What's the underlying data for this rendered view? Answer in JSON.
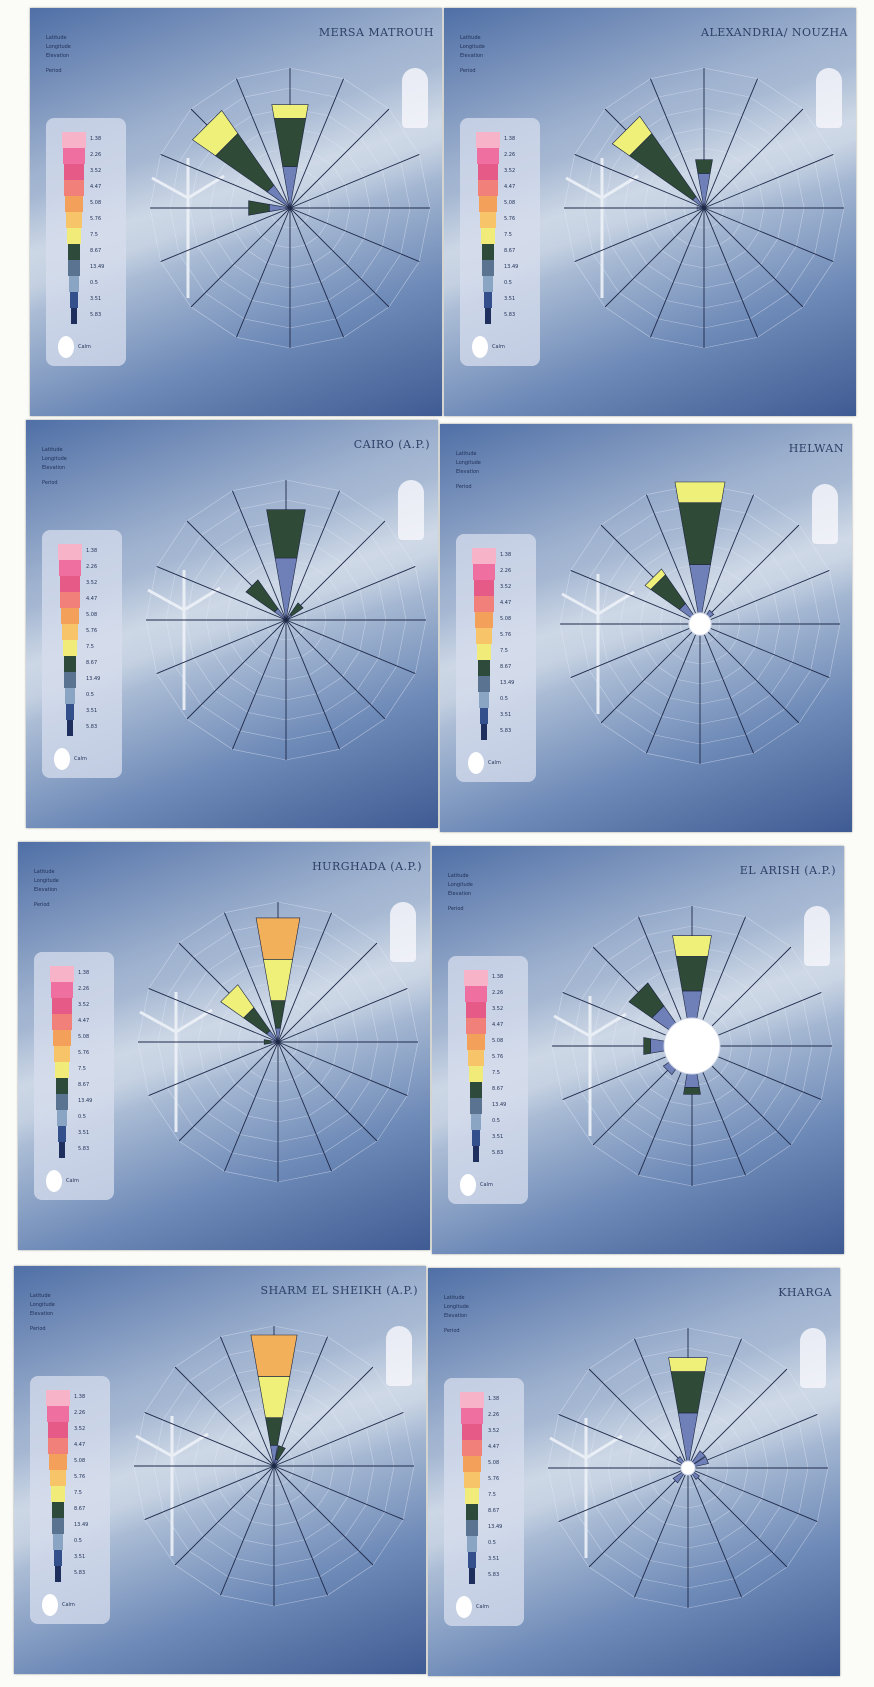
{
  "chart_data": [
    {
      "type": "wind-rose",
      "title": "MERSA MATROUH",
      "position": "top-left",
      "sectors": [
        {
          "dir": 0,
          "speed_bins": [
            0.3,
            0.35,
            0.1
          ]
        },
        {
          "dir": 315,
          "speed_bins": [
            0.2,
            0.45,
            0.2
          ]
        },
        {
          "dir": 270,
          "speed_bins": [
            0.15,
            0.15
          ]
        }
      ],
      "calm": 0
    },
    {
      "type": "wind-rose",
      "title": "ALEXANDRIA/ NOUZHA",
      "position": "top-right",
      "sectors": [
        {
          "dir": 0,
          "speed_bins": [
            0.25,
            0.1
          ]
        },
        {
          "dir": 315,
          "speed_bins": [
            0.1,
            0.55,
            0.15
          ]
        },
        {
          "dir": 270,
          "speed_bins": [
            0.05
          ]
        }
      ],
      "calm": 0
    },
    {
      "type": "wind-rose",
      "title": "CAIRO (A.P.)",
      "position": "mid1-left",
      "sectors": [
        {
          "dir": 0,
          "speed_bins": [
            0.45,
            0.35
          ]
        },
        {
          "dir": 315,
          "speed_bins": [
            0.1,
            0.25
          ]
        },
        {
          "dir": 45,
          "speed_bins": [
            0.05,
            0.1
          ]
        }
      ],
      "calm": 0
    },
    {
      "type": "wind-rose",
      "title": "HELWAN",
      "position": "mid1-right",
      "sectors": [
        {
          "dir": 0,
          "speed_bins": [
            0.35,
            0.45,
            0.15
          ]
        },
        {
          "dir": 315,
          "speed_bins": [
            0.1,
            0.25,
            0.05
          ]
        },
        {
          "dir": 45,
          "speed_bins": [
            0.04
          ]
        }
      ],
      "calm": 0.08
    },
    {
      "type": "wind-rose",
      "title": "HURGHADA (A.P.)",
      "position": "mid2-left",
      "sectors": [
        {
          "dir": 0,
          "speed_bins": [
            0.1,
            0.2,
            0.3,
            0.3
          ]
        },
        {
          "dir": 315,
          "speed_bins": [
            0.1,
            0.2,
            0.2
          ]
        },
        {
          "dir": 270,
          "speed_bins": [
            0.05,
            0.05
          ]
        }
      ],
      "calm": 0
    },
    {
      "type": "wind-rose",
      "title": "EL ARISH (A.P.)",
      "position": "mid2-right",
      "sectors": [
        {
          "dir": 0,
          "speed_bins": [
            0.2,
            0.25,
            0.15
          ]
        },
        {
          "dir": 315,
          "speed_bins": [
            0.15,
            0.2
          ]
        },
        {
          "dir": 270,
          "speed_bins": [
            0.1,
            0.05
          ]
        },
        {
          "dir": 180,
          "speed_bins": [
            0.1,
            0.05
          ]
        },
        {
          "dir": 225,
          "speed_bins": [
            0.05
          ]
        }
      ],
      "calm": 0.2
    },
    {
      "type": "wind-rose",
      "title": "SHARM EL SHEIKH (A.P.)",
      "position": "bottom-left",
      "sectors": [
        {
          "dir": 0,
          "speed_bins": [
            0.15,
            0.2,
            0.3,
            0.3
          ]
        },
        {
          "dir": 22.5,
          "speed_bins": [
            0.05,
            0.1
          ]
        }
      ],
      "calm": 0
    },
    {
      "type": "wind-rose",
      "title": "KHARGA",
      "position": "bottom-right",
      "sectors": [
        {
          "dir": 0,
          "speed_bins": [
            0.35,
            0.3,
            0.1
          ]
        },
        {
          "dir": 45,
          "speed_bins": [
            0.1
          ]
        },
        {
          "dir": 67.5,
          "speed_bins": [
            0.1
          ]
        },
        {
          "dir": 315,
          "speed_bins": [
            0.05
          ]
        },
        {
          "dir": 225,
          "speed_bins": [
            0.08
          ]
        },
        {
          "dir": 135,
          "speed_bins": [
            0.05
          ]
        }
      ],
      "calm": 0.05
    }
  ],
  "legend_labels": [
    "1.38",
    "2.26",
    "3.52",
    "4.47",
    "5.08",
    "5.76",
    "7.5",
    "8.67",
    "13.49",
    "0.5",
    "3.51",
    "5.83"
  ],
  "legend_colors": [
    "#f7b3c8",
    "#ee6fa0",
    "#e55a86",
    "#f2807a",
    "#f3a05a",
    "#f7c46a",
    "#f1eb79",
    "#2e4a3a",
    "#5a7390",
    "#8aa4c4",
    "#33508c",
    "#1e2f5e"
  ],
  "calm_label": "Calm",
  "bin_colors": [
    "#6f7fb8",
    "#2f4a37",
    "#eef07a",
    "#f3b05a",
    "#e86a8a"
  ],
  "info_keys": [
    "Latitude",
    "Longitude",
    "Elevation"
  ],
  "period_key": "Period"
}
